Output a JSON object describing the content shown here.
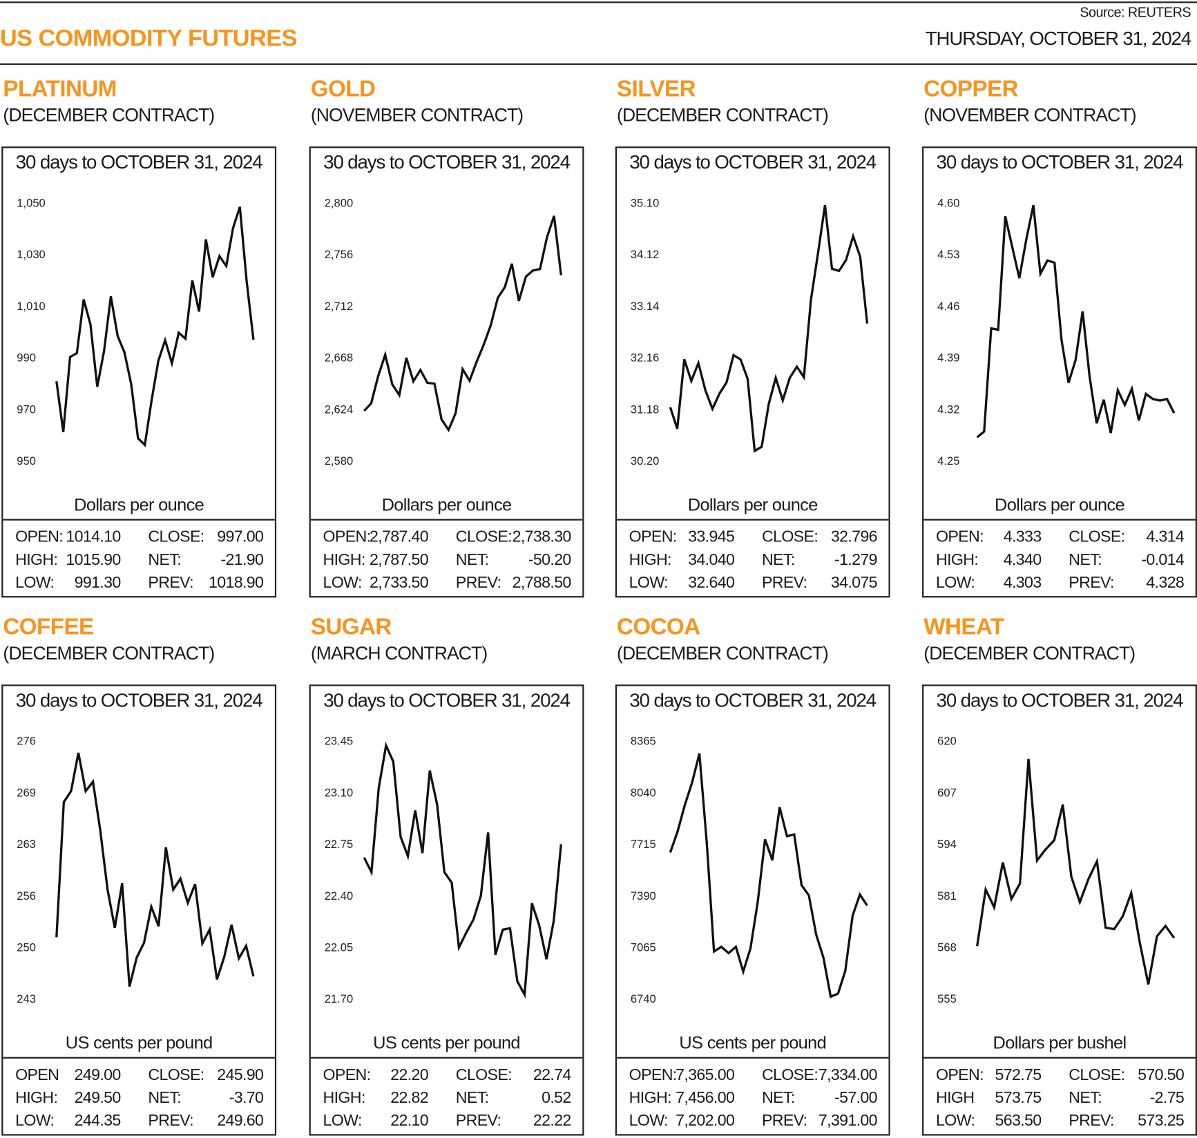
{
  "header": {
    "title": "US COMMODITY FUTURES",
    "source": "Source: REUTERS",
    "date": "THURSDAY, OCTOBER 31, 2024",
    "accent_color": "#f7941d"
  },
  "chart_data": [
    {
      "type": "line",
      "name": "PLATINUM",
      "contract": "(DECEMBER CONTRACT)",
      "title": "30 days to OCTOBER 31, 2024",
      "ylabel": "Dollars per ounce",
      "yticks": [
        "1,050",
        "1,030",
        "1,010",
        "990",
        "970",
        "950"
      ],
      "ylim": [
        950,
        1050
      ],
      "values": [
        980.9,
        961.2,
        990.3,
        991.8,
        1012.6,
        1002.9,
        978.8,
        992.6,
        1013.8,
        998.5,
        992.1,
        979.7,
        958.8,
        956.2,
        973.5,
        988.8,
        996.8,
        987.9,
        999.7,
        997.4,
        1020.0,
        1007.9,
        1035.9,
        1021.2,
        1029.4,
        1025.6,
        1040.3,
        1048.5,
        1019.7,
        997.0
      ],
      "stats": [
        [
          "OPEN:",
          "1014.10",
          "CLOSE:",
          "997.00"
        ],
        [
          "HIGH:",
          "1015.90",
          "NET:",
          "-21.90"
        ],
        [
          "LOW:",
          "991.30",
          "PREV:",
          "1018.90"
        ]
      ]
    },
    {
      "type": "line",
      "name": "GOLD",
      "contract": "(NOVEMBER CONTRACT)",
      "title": "30 days to OCTOBER 31, 2024",
      "ylabel": "Dollars per ounce",
      "yticks": [
        "2,800",
        "2,756",
        "2,712",
        "2,668",
        "2,624",
        "2,580"
      ],
      "ylim": [
        2580,
        2800
      ],
      "values": [
        2622.7,
        2629.1,
        2652.4,
        2670.6,
        2645.3,
        2636.2,
        2668.0,
        2647.9,
        2657.6,
        2646.6,
        2646.0,
        2615.5,
        2606.5,
        2620.7,
        2658.3,
        2648.5,
        2664.7,
        2679.0,
        2695.8,
        2719.1,
        2728.2,
        2748.2,
        2716.5,
        2737.2,
        2742.4,
        2743.7,
        2770.9,
        2789.0,
        2738.5
      ],
      "stats": [
        [
          "OPEN:",
          "2,787.40",
          "CLOSE:",
          "2,738.30"
        ],
        [
          "HIGH:",
          "2,787.50",
          "NET:",
          "-50.20"
        ],
        [
          "LOW:",
          "2,733.50",
          "PREV:",
          "2,788.50"
        ]
      ]
    },
    {
      "type": "line",
      "name": "SILVER",
      "contract": "(DECEMBER CONTRACT)",
      "title": "30 days to OCTOBER 31, 2024",
      "ylabel": "Dollars per ounce",
      "yticks": [
        "35.10",
        "34.12",
        "33.14",
        "32.16",
        "31.18",
        "30.20"
      ],
      "ylim": [
        30.2,
        35.1
      ],
      "values": [
        31.22,
        30.81,
        32.13,
        31.72,
        32.06,
        31.54,
        31.19,
        31.48,
        31.69,
        32.21,
        32.13,
        31.76,
        30.39,
        30.47,
        31.28,
        31.78,
        31.35,
        31.78,
        31.99,
        31.79,
        33.26,
        34.14,
        35.06,
        33.85,
        33.81,
        34.02,
        34.47,
        34.08,
        32.81
      ],
      "stats": [
        [
          "OPEN:",
          "33.945",
          "CLOSE:",
          "32.796"
        ],
        [
          "HIGH:",
          "34.040",
          "NET:",
          "-1.279"
        ],
        [
          "LOW:",
          "32.640",
          "PREV:",
          "34.075"
        ]
      ]
    },
    {
      "type": "line",
      "name": "COPPER",
      "contract": "(NOVEMBER CONTRACT)",
      "title": "30 days to OCTOBER 31, 2024",
      "ylabel": "Dollars per ounce",
      "yticks": [
        "4.60",
        "4.53",
        "4.46",
        "4.39",
        "4.32",
        "4.25"
      ],
      "ylim": [
        4.25,
        4.6
      ],
      "values": [
        4.282,
        4.29,
        4.43,
        4.428,
        4.582,
        4.54,
        4.498,
        4.551,
        4.597,
        4.504,
        4.522,
        4.519,
        4.414,
        4.356,
        4.387,
        4.453,
        4.364,
        4.301,
        4.333,
        4.288,
        4.346,
        4.326,
        4.348,
        4.305,
        4.341,
        4.334,
        4.332,
        4.334,
        4.315
      ],
      "stats": [
        [
          "OPEN:",
          "4.333",
          "CLOSE:",
          "4.314"
        ],
        [
          "HIGH:",
          "4.340",
          "NET:",
          "-0.014"
        ],
        [
          "LOW:",
          "4.303",
          "PREV:",
          "4.328"
        ]
      ]
    },
    {
      "type": "line",
      "name": "COFFEE",
      "contract": "(DECEMBER CONTRACT)",
      "title": "30 days to OCTOBER 31, 2024",
      "ylabel": "US cents per pound",
      "yticks": [
        "276",
        "269",
        "263",
        "256",
        "250",
        "243"
      ],
      "ylim": [
        243,
        276
      ],
      "values": [
        250.9,
        268.2,
        269.6,
        274.5,
        269.6,
        270.8,
        264.6,
        257.0,
        252.1,
        257.8,
        244.6,
        248.3,
        250.2,
        254.8,
        252.3,
        262.4,
        257.0,
        258.4,
        255.3,
        257.7,
        250.1,
        251.9,
        245.5,
        248.4,
        252.5,
        248.2,
        249.8,
        245.9
      ],
      "stats": [
        [
          "OPEN",
          "249.00",
          "CLOSE:",
          "245.90"
        ],
        [
          "HIGH:",
          "249.50",
          "NET:",
          "-3.70"
        ],
        [
          "LOW:",
          "244.35",
          "PREV:",
          "249.60"
        ]
      ]
    },
    {
      "type": "line",
      "name": "SUGAR",
      "contract": "(MARCH CONTRACT)",
      "title": "30 days to OCTOBER 31, 2024",
      "ylabel": "US cents per pound",
      "yticks": [
        "23.45",
        "23.10",
        "22.75",
        "22.40",
        "22.05",
        "21.70"
      ],
      "ylim": [
        21.7,
        23.45
      ],
      "values": [
        22.66,
        22.56,
        23.13,
        23.42,
        23.31,
        22.8,
        22.67,
        22.98,
        22.69,
        23.25,
        23.02,
        22.56,
        22.49,
        22.05,
        22.15,
        22.24,
        22.4,
        22.83,
        22.0,
        22.17,
        22.18,
        21.82,
        21.73,
        22.35,
        22.2,
        21.97,
        22.23,
        22.75
      ],
      "stats": [
        [
          "OPEN:",
          "22.20",
          "CLOSE:",
          "22.74"
        ],
        [
          "HIGH:",
          "22.82",
          "NET:",
          "0.52"
        ],
        [
          "LOW:",
          "22.10",
          "PREV:",
          "22.22"
        ]
      ]
    },
    {
      "type": "line",
      "name": "COCOA",
      "contract": "(DECEMBER CONTRACT)",
      "title": "30 days to OCTOBER 31, 2024",
      "ylabel": "US cents per pound",
      "yticks": [
        "8365",
        "8040",
        "7715",
        "7390",
        "7065",
        "6740"
      ],
      "ylim": [
        6740,
        8365
      ],
      "values": [
        7663,
        7795,
        7962,
        8105,
        8286,
        7727,
        7039,
        7069,
        7029,
        7069,
        6912,
        7059,
        7354,
        7746,
        7614,
        7948,
        7766,
        7776,
        7457,
        7393,
        7147,
        7000,
        6755,
        6774,
        6917,
        7265,
        7398,
        7329
      ],
      "stats": [
        [
          "OPEN:",
          "7,365.00",
          "CLOSE:",
          "7,334.00"
        ],
        [
          "HIGH:",
          "7,456.00",
          "NET:",
          "-57.00"
        ],
        [
          "LOW:",
          "7,202.00",
          "PREV:",
          "7,391.00"
        ]
      ]
    },
    {
      "type": "line",
      "name": "WHEAT",
      "contract": "(DECEMBER CONTRACT)",
      "title": "30 days to OCTOBER 31, 2024",
      "ylabel": "Dollars per bushel",
      "yticks": [
        "620",
        "607",
        "594",
        "581",
        "568",
        "555"
      ],
      "ylim": [
        555,
        620
      ],
      "values": [
        568.3,
        582.6,
        578.1,
        589.4,
        580.2,
        584.1,
        615.5,
        589.9,
        592.7,
        595.0,
        604.0,
        585.8,
        579.4,
        585.2,
        589.7,
        573.0,
        572.6,
        575.8,
        581.7,
        569.2,
        558.7,
        570.8,
        573.4,
        570.4
      ],
      "stats": [
        [
          "OPEN:",
          "572.75",
          "CLOSE:",
          "570.50"
        ],
        [
          "HIGH",
          "573.75",
          "NET:",
          "-2.75"
        ],
        [
          "LOW:",
          "563.50",
          "PREV:",
          "573.25"
        ]
      ]
    }
  ]
}
